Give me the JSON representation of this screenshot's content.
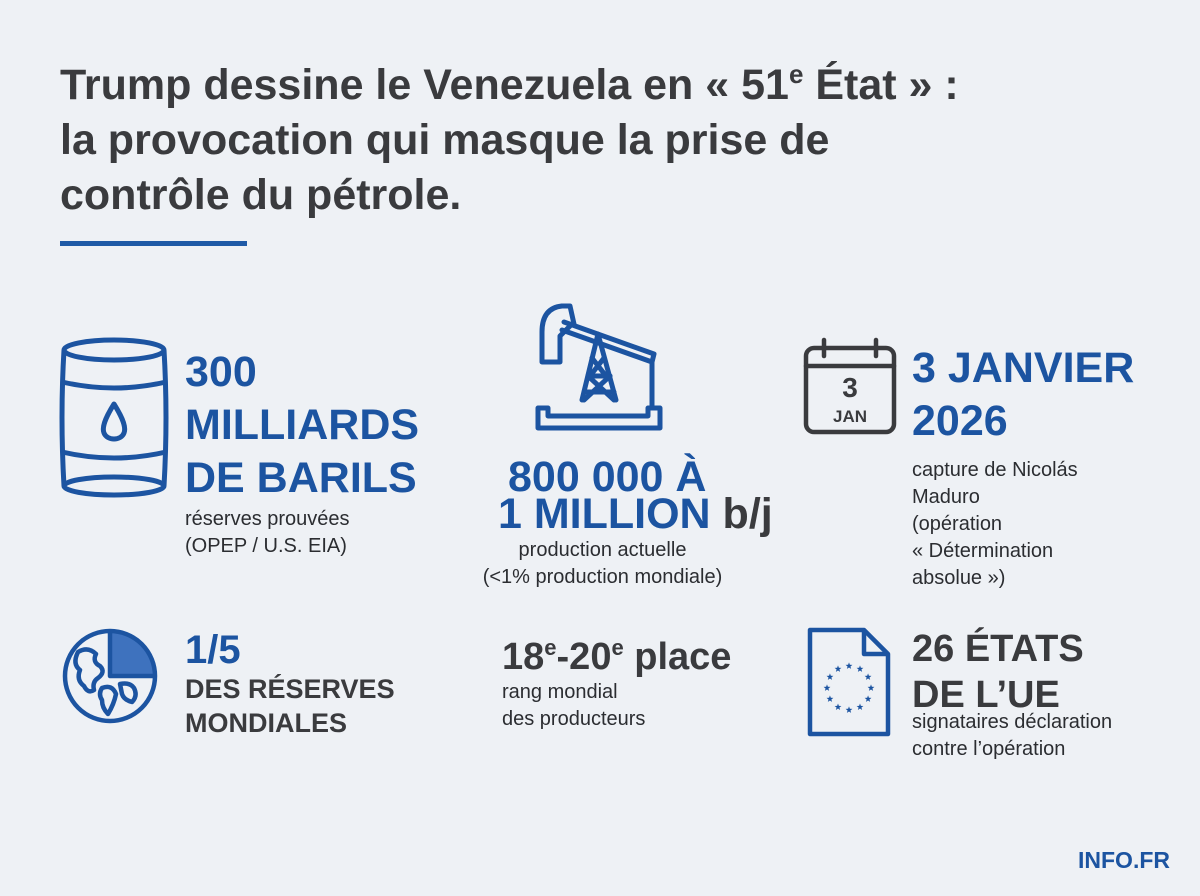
{
  "title": {
    "line1_pre": "Trump dessine le Venezuela en « 51",
    "line1_sup": "e",
    "line1_post": " État » :",
    "line2": "la provocation qui masque la prise de",
    "line3": "contrôle du pétrole."
  },
  "stats": {
    "reserves": {
      "line1": "300",
      "line2": "MILLIARDS",
      "line3": "DE BARILS",
      "desc1": "réserves prouvées",
      "desc2": "(OPEP / U.S. EIA)"
    },
    "production": {
      "line1": "800 000 À",
      "line2_blue": "1 MILLION",
      "line2_gray": " b/j",
      "desc1": "production actuelle",
      "desc2": "(<1% production mondiale)"
    },
    "date": {
      "line1": "3 JANVIER",
      "line2": "2026",
      "desc1": "capture de Nicolás",
      "desc2": "Maduro",
      "desc3": "(opération",
      "desc4": "« Détermination",
      "desc5": "absolue »)",
      "calendar_day": "3",
      "calendar_month": "JAN"
    },
    "share": {
      "line1": "1/5",
      "line2": "DES RÉSERVES",
      "line3": "MONDIALES"
    },
    "rank": {
      "n1": "18",
      "sup1": "e",
      "sep": "-20",
      "sup2": "e",
      "rest": " place",
      "desc1": "rang mondial",
      "desc2": "des producteurs"
    },
    "eu": {
      "line1": "26 ÉTATS",
      "line2": "DE L’UE",
      "desc1": "signataires déclaration",
      "desc2": "contre l’opération"
    }
  },
  "icons": [
    "oil-barrel-icon",
    "pumpjack-icon",
    "calendar-icon",
    "globe-icon",
    "eu-document-icon"
  ],
  "colors": {
    "accent": "#1c54a1",
    "text": "#3a3b3e",
    "background": "#eef1f5"
  },
  "brand": "INFO.FR"
}
